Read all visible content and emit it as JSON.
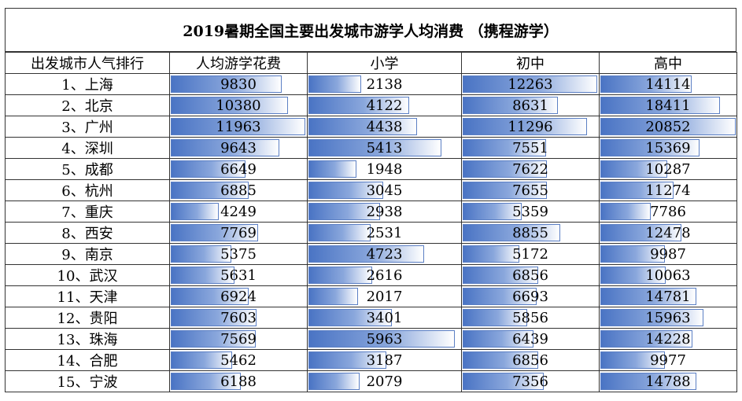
{
  "chart_data": {
    "type": "table",
    "title": "2019暑期全国主要出发城市游学人均消费  （携程游学）",
    "columns": [
      "出发城市人气排行",
      "人均游学花费",
      "小学",
      "初中",
      "高中"
    ],
    "rows": [
      {
        "city": "1、上海",
        "avg": 9830,
        "primary": 2138,
        "middle": 12263,
        "high": 14114
      },
      {
        "city": "2、北京",
        "avg": 10380,
        "primary": 4122,
        "middle": 8631,
        "high": 18411
      },
      {
        "city": "3、广州",
        "avg": 11963,
        "primary": 4438,
        "middle": 11296,
        "high": 20852
      },
      {
        "city": "4、深圳",
        "avg": 9643,
        "primary": 5413,
        "middle": 7551,
        "high": 15369
      },
      {
        "city": "5、成都",
        "avg": 6649,
        "primary": 1948,
        "middle": 7622,
        "high": 10287
      },
      {
        "city": "6、杭州",
        "avg": 6885,
        "primary": 3045,
        "middle": 7655,
        "high": 11274
      },
      {
        "city": "7、重庆",
        "avg": 4249,
        "primary": 2938,
        "middle": 5359,
        "high": 7786
      },
      {
        "city": "8、西安",
        "avg": 7769,
        "primary": 2531,
        "middle": 8855,
        "high": 12478
      },
      {
        "city": "9、南京",
        "avg": 5375,
        "primary": 4723,
        "middle": 5172,
        "high": 9987
      },
      {
        "city": "10、武汉",
        "avg": 5631,
        "primary": 2616,
        "middle": 6856,
        "high": 10063
      },
      {
        "city": "11、天津",
        "avg": 6924,
        "primary": 2017,
        "middle": 6693,
        "high": 14781
      },
      {
        "city": "12、贵阳",
        "avg": 7603,
        "primary": 3401,
        "middle": 5856,
        "high": 15963
      },
      {
        "city": "13、珠海",
        "avg": 7569,
        "primary": 5963,
        "middle": 6439,
        "high": 14228
      },
      {
        "city": "14、合肥",
        "avg": 5462,
        "primary": 3187,
        "middle": 6856,
        "high": 9977
      },
      {
        "city": "15、宁波",
        "avg": 6188,
        "primary": 2079,
        "middle": 7356,
        "high": 14788
      }
    ]
  }
}
